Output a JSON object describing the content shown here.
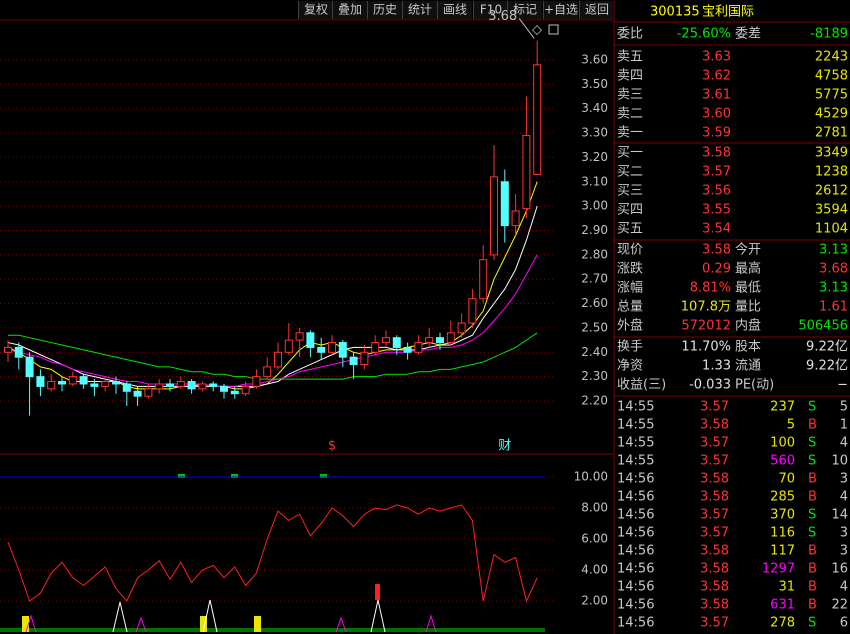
{
  "toolbar": [
    "复权",
    "叠加",
    "历史",
    "统计",
    "画线",
    "F10",
    "标记",
    "+自选",
    "返回"
  ],
  "kline": {
    "ylim": [
      2.04,
      3.764
    ],
    "yticks": [
      {
        "value": 2.2,
        "label": "2.20"
      },
      {
        "value": 2.3,
        "label": "2.30"
      },
      {
        "value": 2.4,
        "label": "2.40"
      },
      {
        "value": 2.5,
        "label": "2.50"
      },
      {
        "value": 2.6,
        "label": "2.60"
      },
      {
        "value": 2.7,
        "label": "2.70"
      },
      {
        "value": 2.8,
        "label": "2.80"
      },
      {
        "value": 2.9,
        "label": "2.90"
      },
      {
        "value": 3.0,
        "label": "3.00"
      },
      {
        "value": 3.1,
        "label": "3.10"
      },
      {
        "value": 3.2,
        "label": "3.20"
      },
      {
        "value": 3.3,
        "label": "3.30"
      },
      {
        "value": 3.4,
        "label": "3.40"
      },
      {
        "value": 3.5,
        "label": "3.50"
      },
      {
        "value": 3.6,
        "label": "3.60"
      }
    ],
    "up_color": "#ff3232",
    "down_color": "#54ffff",
    "grid_color": "#800000",
    "candles": [
      [
        2.4,
        2.45,
        2.36,
        2.42
      ],
      [
        2.42,
        2.44,
        2.33,
        2.38
      ],
      [
        2.38,
        2.4,
        2.14,
        2.3
      ],
      [
        2.3,
        2.33,
        2.22,
        2.26
      ],
      [
        2.25,
        2.31,
        2.24,
        2.28
      ],
      [
        2.28,
        2.3,
        2.24,
        2.27
      ],
      [
        2.27,
        2.32,
        2.26,
        2.3
      ],
      [
        2.3,
        2.31,
        2.25,
        2.27
      ],
      [
        2.27,
        2.29,
        2.22,
        2.26
      ],
      [
        2.26,
        2.3,
        2.24,
        2.28
      ],
      [
        2.28,
        2.3,
        2.23,
        2.27
      ],
      [
        2.27,
        2.28,
        2.18,
        2.24
      ],
      [
        2.24,
        2.26,
        2.18,
        2.22
      ],
      [
        2.22,
        2.27,
        2.21,
        2.25
      ],
      [
        2.25,
        2.29,
        2.23,
        2.27
      ],
      [
        2.27,
        2.29,
        2.24,
        2.26
      ],
      [
        2.26,
        2.3,
        2.25,
        2.28
      ],
      [
        2.28,
        2.29,
        2.23,
        2.25
      ],
      [
        2.25,
        2.28,
        2.24,
        2.27
      ],
      [
        2.27,
        2.28,
        2.24,
        2.26
      ],
      [
        2.26,
        2.27,
        2.21,
        2.24
      ],
      [
        2.24,
        2.26,
        2.21,
        2.23
      ],
      [
        2.23,
        2.28,
        2.22,
        2.26
      ],
      [
        2.26,
        2.33,
        2.25,
        2.3
      ],
      [
        2.3,
        2.38,
        2.29,
        2.34
      ],
      [
        2.34,
        2.44,
        2.33,
        2.4
      ],
      [
        2.4,
        2.52,
        2.39,
        2.45
      ],
      [
        2.45,
        2.5,
        2.38,
        2.48
      ],
      [
        2.48,
        2.49,
        2.38,
        2.42
      ],
      [
        2.42,
        2.46,
        2.37,
        2.4
      ],
      [
        2.4,
        2.47,
        2.39,
        2.44
      ],
      [
        2.44,
        2.45,
        2.34,
        2.38
      ],
      [
        2.38,
        2.4,
        2.29,
        2.35
      ],
      [
        2.35,
        2.43,
        2.33,
        2.4
      ],
      [
        2.4,
        2.47,
        2.39,
        2.44
      ],
      [
        2.44,
        2.49,
        2.42,
        2.46
      ],
      [
        2.46,
        2.47,
        2.39,
        2.42
      ],
      [
        2.42,
        2.44,
        2.37,
        2.4
      ],
      [
        2.4,
        2.47,
        2.39,
        2.44
      ],
      [
        2.44,
        2.5,
        2.42,
        2.46
      ],
      [
        2.46,
        2.48,
        2.41,
        2.44
      ],
      [
        2.44,
        2.53,
        2.43,
        2.48
      ],
      [
        2.48,
        2.56,
        2.46,
        2.52
      ],
      [
        2.52,
        2.66,
        2.5,
        2.62
      ],
      [
        2.62,
        2.84,
        2.6,
        2.78
      ],
      [
        2.8,
        3.25,
        2.78,
        3.12
      ],
      [
        3.1,
        3.15,
        2.85,
        2.92
      ],
      [
        2.92,
        3.05,
        2.88,
        2.98
      ],
      [
        2.99,
        3.45,
        2.95,
        3.29
      ],
      [
        3.13,
        3.68,
        3.13,
        3.58
      ]
    ],
    "lines": [
      {
        "color": "#ffff00",
        "values": [
          2.42,
          2.4,
          2.37,
          2.34,
          2.33,
          2.3,
          2.28,
          2.28,
          2.28,
          2.28,
          2.28,
          2.26,
          2.25,
          2.25,
          2.25,
          2.25,
          2.26,
          2.26,
          2.27,
          2.26,
          2.26,
          2.25,
          2.25,
          2.26,
          2.27,
          2.31,
          2.36,
          2.41,
          2.44,
          2.43,
          2.44,
          2.42,
          2.4,
          2.39,
          2.4,
          2.41,
          2.41,
          2.42,
          2.43,
          2.44,
          2.43,
          2.44,
          2.47,
          2.51,
          2.57,
          2.7,
          2.79,
          2.88,
          2.98,
          3.1
        ]
      },
      {
        "color": "#ffffff",
        "values": [
          2.44,
          2.43,
          2.41,
          2.39,
          2.37,
          2.35,
          2.33,
          2.31,
          2.3,
          2.29,
          2.28,
          2.27,
          2.26,
          2.26,
          2.26,
          2.26,
          2.26,
          2.26,
          2.26,
          2.26,
          2.26,
          2.26,
          2.26,
          2.26,
          2.27,
          2.28,
          2.31,
          2.33,
          2.35,
          2.37,
          2.39,
          2.41,
          2.42,
          2.42,
          2.42,
          2.42,
          2.41,
          2.41,
          2.41,
          2.42,
          2.43,
          2.43,
          2.45,
          2.47,
          2.54,
          2.6,
          2.66,
          2.74,
          2.86,
          3.0
        ]
      },
      {
        "color": "#ff00ff",
        "values": [
          2.41,
          2.4,
          2.39,
          2.38,
          2.36,
          2.35,
          2.33,
          2.32,
          2.31,
          2.3,
          2.29,
          2.28,
          2.28,
          2.27,
          2.27,
          2.27,
          2.27,
          2.27,
          2.27,
          2.26,
          2.26,
          2.26,
          2.27,
          2.27,
          2.28,
          2.29,
          2.3,
          2.32,
          2.33,
          2.34,
          2.35,
          2.36,
          2.37,
          2.38,
          2.39,
          2.4,
          2.4,
          2.4,
          2.41,
          2.41,
          2.42,
          2.42,
          2.43,
          2.45,
          2.48,
          2.53,
          2.58,
          2.64,
          2.72,
          2.8
        ]
      },
      {
        "color": "#00e600",
        "values": [
          2.47,
          2.47,
          2.46,
          2.45,
          2.44,
          2.43,
          2.42,
          2.41,
          2.4,
          2.39,
          2.38,
          2.37,
          2.36,
          2.35,
          2.34,
          2.34,
          2.33,
          2.32,
          2.32,
          2.31,
          2.31,
          2.3,
          2.3,
          2.29,
          2.29,
          2.29,
          2.29,
          2.29,
          2.29,
          2.29,
          2.29,
          2.29,
          2.3,
          2.3,
          2.3,
          2.31,
          2.31,
          2.31,
          2.32,
          2.32,
          2.33,
          2.33,
          2.34,
          2.35,
          2.36,
          2.38,
          2.4,
          2.42,
          2.45,
          2.48
        ]
      }
    ],
    "high_label": {
      "value": 3.68,
      "label": "3.68"
    },
    "markers": [
      {
        "candle": 30,
        "text": "$",
        "color": "#ff3232"
      },
      {
        "candle": 46,
        "text": "财",
        "color": "#54ffff"
      }
    ]
  },
  "indicator": {
    "ylim": [
      0,
      11.42
    ],
    "yticks": [
      {
        "value": 2,
        "label": "2.00"
      },
      {
        "value": 4,
        "label": "4.00"
      },
      {
        "value": 6,
        "label": "6.00"
      },
      {
        "value": 8,
        "label": "8.00"
      },
      {
        "value": 10,
        "label": "10.00"
      }
    ],
    "reference": 10,
    "reference_color": "#0000ff",
    "color": "#ff2020",
    "values": [
      5.8,
      4.0,
      2.0,
      2.5,
      3.8,
      4.5,
      3.5,
      3.0,
      3.6,
      4.2,
      2.8,
      2.0,
      3.5,
      4.0,
      4.6,
      3.4,
      4.5,
      3.2,
      4.0,
      4.3,
      3.5,
      4.2,
      3.0,
      3.8,
      6.0,
      7.8,
      7.2,
      7.6,
      6.2,
      7.0,
      8.0,
      7.5,
      6.8,
      7.6,
      8.0,
      7.9,
      8.2,
      8.0,
      7.6,
      8.0,
      7.8,
      8.0,
      8.2,
      7.2,
      2.0,
      5.0,
      4.5,
      4.8,
      2.0,
      3.5
    ]
  },
  "quote": {
    "code": "300135",
    "name": "宝利国际",
    "ratio": {
      "label": "委比",
      "value": "-25.60%",
      "label2": "委差",
      "value2": "-8189",
      "color": "#00e600"
    },
    "price_color": "#ff3232",
    "volume_color": "#e6e600",
    "asks": [
      {
        "label": "卖五",
        "price": "3.63",
        "volume": "2243"
      },
      {
        "label": "卖四",
        "price": "3.62",
        "volume": "4758"
      },
      {
        "label": "卖三",
        "price": "3.61",
        "volume": "5775"
      },
      {
        "label": "卖二",
        "price": "3.60",
        "volume": "4529"
      },
      {
        "label": "卖一",
        "price": "3.59",
        "volume": "2781"
      }
    ],
    "bids": [
      {
        "label": "买一",
        "price": "3.58",
        "volume": "3349"
      },
      {
        "label": "买二",
        "price": "3.57",
        "volume": "1238"
      },
      {
        "label": "买三",
        "price": "3.56",
        "volume": "2612"
      },
      {
        "label": "买四",
        "price": "3.55",
        "volume": "3594"
      },
      {
        "label": "买五",
        "price": "3.54",
        "volume": "1104"
      }
    ],
    "stats": [
      {
        "label": "现价",
        "value": "3.58",
        "color": "#ff3232",
        "label2": "今开",
        "value2": "3.13",
        "color2": "#00e600"
      },
      {
        "label": "涨跌",
        "value": "0.29",
        "color": "#ff3232",
        "label2": "最高",
        "value2": "3.68",
        "color2": "#ff3232"
      },
      {
        "label": "涨幅",
        "value": "8.81%",
        "color": "#ff3232",
        "label2": "最低",
        "value2": "3.13",
        "color2": "#00e600"
      },
      {
        "label": "总量",
        "value": "107.8万",
        "color": "#e6e600",
        "label2": "量比",
        "value2": "1.61",
        "color2": "#ff3232"
      },
      {
        "label": "外盘",
        "value": "572012",
        "color": "#ff3232",
        "label2": "内盘",
        "value2": "506456",
        "color2": "#00e600"
      },
      {
        "label": "换手",
        "value": "11.70%",
        "color": "#e0e0e0",
        "label2": "股本",
        "value2": "9.22亿",
        "color2": "#e0e0e0"
      },
      {
        "label": "净资",
        "value": "1.33",
        "color": "#e0e0e0",
        "label2": "流通",
        "value2": "9.22亿",
        "color2": "#e0e0e0"
      },
      {
        "label": "收益(三)",
        "value": "-0.033",
        "color": "#e0e0e0",
        "label2": "PE(动)",
        "value2": "−",
        "color2": "#e0e0e0"
      }
    ]
  },
  "trades": {
    "side_colors": {
      "S": "#00e600",
      "B": "#ff3232"
    },
    "price_color": "#ff3232",
    "rows": [
      [
        "14:55",
        "3.57",
        "237",
        "S",
        "5"
      ],
      [
        "14:55",
        "3.58",
        "5",
        "B",
        "1"
      ],
      [
        "14:55",
        "3.57",
        "100",
        "S",
        "4"
      ],
      [
        "14:55",
        "3.57",
        "560",
        "S",
        "10"
      ],
      [
        "14:56",
        "3.58",
        "70",
        "B",
        "3"
      ],
      [
        "14:56",
        "3.58",
        "285",
        "B",
        "4"
      ],
      [
        "14:56",
        "3.57",
        "370",
        "S",
        "14"
      ],
      [
        "14:56",
        "3.57",
        "116",
        "S",
        "3"
      ],
      [
        "14:56",
        "3.58",
        "117",
        "B",
        "3"
      ],
      [
        "14:56",
        "3.58",
        "1297",
        "B",
        "16"
      ],
      [
        "14:56",
        "3.58",
        "31",
        "B",
        "4"
      ],
      [
        "14:56",
        "3.58",
        "631",
        "B",
        "22"
      ],
      [
        "14:56",
        "3.57",
        "278",
        "S",
        "6"
      ]
    ],
    "volume_colors": [
      "#e6e600",
      "#e6e600",
      "#e6e600",
      "#ff00ff",
      "#e6e600",
      "#e6e600",
      "#e6e600",
      "#e6e600",
      "#e6e600",
      "#ff00ff",
      "#e6e600",
      "#ff00ff",
      "#e6e600"
    ]
  }
}
